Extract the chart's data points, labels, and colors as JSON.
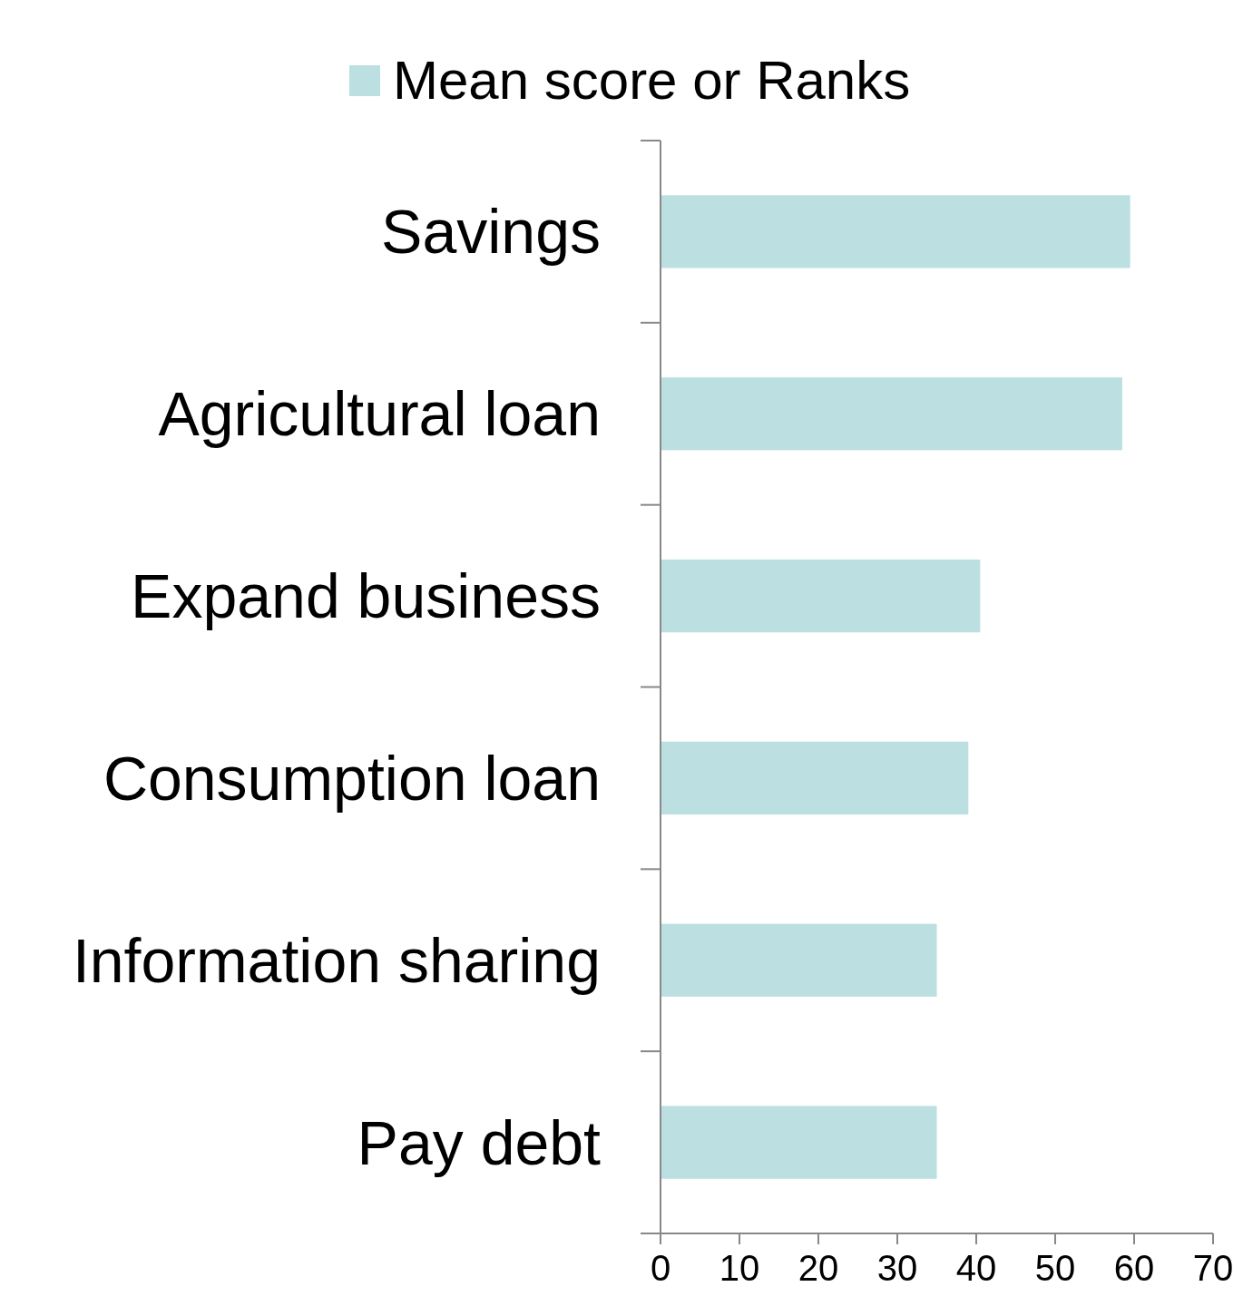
{
  "chart_data": {
    "type": "bar",
    "orientation": "horizontal",
    "categories": [
      "Savings",
      "Agricultural loan",
      "Expand business",
      "Consumption loan",
      "Information sharing",
      "Pay debt"
    ],
    "series": [
      {
        "name": "Mean score or Ranks",
        "color": "#bce0e2",
        "values": [
          59.5,
          58.5,
          40.5,
          39,
          35,
          35
        ]
      }
    ],
    "xlim": [
      0,
      70
    ],
    "xticks": [
      0,
      10,
      20,
      30,
      40,
      50,
      60,
      70
    ],
    "grid": false,
    "legend": "top"
  }
}
